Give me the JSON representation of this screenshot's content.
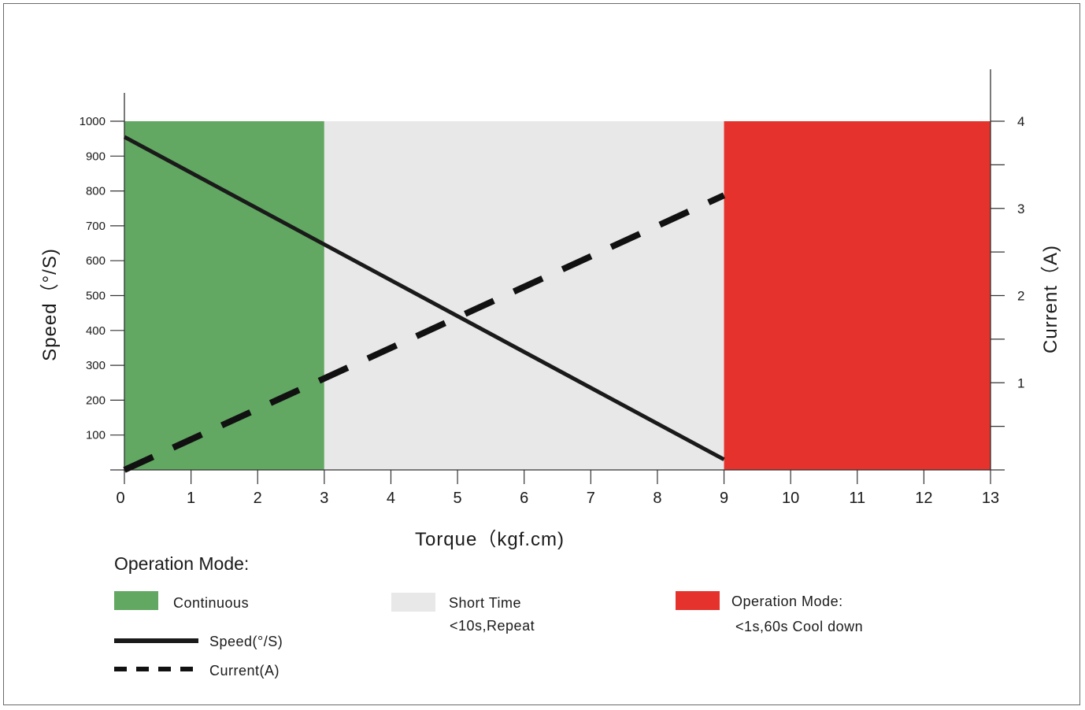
{
  "chart_data": {
    "type": "line",
    "xlabel": "Torque（kgf.cm)",
    "ylabel": "Speed（°/S)",
    "y2label": "Current（A)",
    "xlim": [
      0,
      13
    ],
    "ylim": [
      0,
      1000
    ],
    "y2lim": [
      0,
      4
    ],
    "x_ticks": [
      0,
      1,
      2,
      3,
      4,
      5,
      6,
      7,
      8,
      9,
      10,
      11,
      12,
      13
    ],
    "y_ticks": [
      100,
      200,
      300,
      400,
      500,
      600,
      700,
      800,
      900,
      1000
    ],
    "y2_ticks": [
      1,
      2,
      3,
      4
    ],
    "zones": [
      {
        "name": "Continuous",
        "from": 0,
        "to": 3,
        "color": "#62a862"
      },
      {
        "name": "Short Time",
        "from": 3,
        "to": 9,
        "color": "#e8e8e8"
      },
      {
        "name": "Operation Mode:",
        "from": 9,
        "to": 13,
        "color": "#e5322d"
      }
    ],
    "series": [
      {
        "name": "Speed(°/S)",
        "axis": "left",
        "style": "solid",
        "color": "#1a1a1a",
        "x": [
          0,
          9
        ],
        "y": [
          955,
          30
        ]
      },
      {
        "name": "Current(A)",
        "axis": "right",
        "style": "dashed",
        "color": "#111111",
        "x": [
          0,
          9
        ],
        "y": [
          0,
          3.15
        ]
      }
    ],
    "grid": false,
    "legend_placement": "bottom"
  },
  "legend": {
    "heading": "Operation Mode:",
    "zones": [
      {
        "title": "Continuous",
        "subtitle": "",
        "color": "#62a862"
      },
      {
        "title": "Short Time",
        "subtitle": "<10s,Repeat",
        "color": "#e8e8e8"
      },
      {
        "title": "Operation Mode:",
        "subtitle": "<1s,60s Cool down",
        "color": "#e5322d"
      }
    ],
    "lines": [
      {
        "label": "Speed(°/S)",
        "style": "solid"
      },
      {
        "label": "Current(A)",
        "style": "dashed"
      }
    ]
  }
}
